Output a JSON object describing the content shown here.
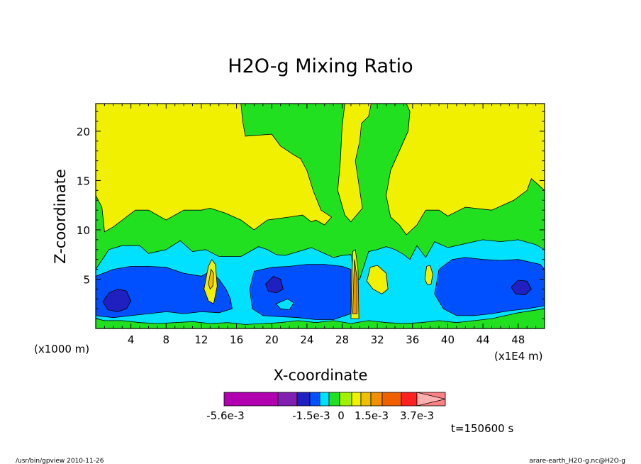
{
  "chart_data": {
    "type": "heatmap",
    "title": "H2O-g Mixing Ratio",
    "xlabel": "X-coordinate",
    "ylabel": "Z-coordinate",
    "xunit_left": "(x1000 m)",
    "xunit_right": "(x1E4 m)",
    "xlim": [
      0,
      51
    ],
    "ylim": [
      0,
      22.8
    ],
    "x_ticks": [
      "4",
      "8",
      "12",
      "16",
      "20",
      "24",
      "28",
      "32",
      "36",
      "40",
      "44",
      "48"
    ],
    "x_tick_values": [
      4,
      8,
      12,
      16,
      20,
      24,
      28,
      32,
      36,
      40,
      44,
      48
    ],
    "y_ticks": [
      "5",
      "10",
      "15",
      "20"
    ],
    "y_tick_values": [
      5,
      10,
      15,
      20
    ],
    "time_label": "t=150600 s",
    "colorbar": {
      "labels": [
        "-5.6e-3",
        "-1.5e-3",
        "0",
        "1.5e-3",
        "3.7e-3"
      ],
      "colors": [
        "#b000b0",
        "#8020b0",
        "#2020c0",
        "#0050ff",
        "#00e0ff",
        "#20e020",
        "#a0f000",
        "#f0f000",
        "#f0c000",
        "#f09000",
        "#f06000",
        "#ff2020",
        "#ff8080",
        "#ffb0b0"
      ]
    },
    "regions": [
      {
        "level": "green",
        "color": "#20e020",
        "points": [
          [
            0,
            0
          ],
          [
            51,
            0
          ],
          [
            51,
            22.8
          ],
          [
            0,
            22.8
          ]
        ]
      },
      {
        "level": "yellow-upper-left",
        "color": "#f0f000",
        "points": [
          [
            0,
            22.8
          ],
          [
            16.5,
            22.8
          ],
          [
            16.7,
            21
          ],
          [
            17,
            19.5
          ],
          [
            20,
            19.7
          ],
          [
            21,
            18.5
          ],
          [
            22.5,
            17.6
          ],
          [
            23.3,
            17.2
          ],
          [
            24,
            16
          ],
          [
            24.7,
            14
          ],
          [
            25.6,
            12
          ],
          [
            26.8,
            11.3
          ],
          [
            26,
            10.5
          ],
          [
            25,
            11
          ],
          [
            24.5,
            10.8
          ],
          [
            23.5,
            11.5
          ],
          [
            22,
            11.3
          ],
          [
            19.5,
            11
          ],
          [
            18,
            10
          ],
          [
            16.5,
            11
          ],
          [
            14.7,
            11.7
          ],
          [
            13,
            12.2
          ],
          [
            12,
            12
          ],
          [
            10,
            12
          ],
          [
            8,
            11
          ],
          [
            6,
            12
          ],
          [
            4.5,
            12
          ],
          [
            2,
            10.3
          ],
          [
            1,
            9.8
          ],
          [
            0.7,
            12.3
          ],
          [
            0,
            13.5
          ]
        ]
      },
      {
        "level": "yellow-upper-mid",
        "color": "#f0f000",
        "points": [
          [
            28.3,
            22.8
          ],
          [
            31.3,
            22.8
          ],
          [
            31,
            21.5
          ],
          [
            30.2,
            20.8
          ],
          [
            30,
            19
          ],
          [
            29.5,
            17
          ],
          [
            30,
            14
          ],
          [
            30.3,
            12.2
          ],
          [
            29,
            10.8
          ],
          [
            28.3,
            11.5
          ],
          [
            27.5,
            14
          ],
          [
            27.8,
            17
          ],
          [
            28,
            20.5
          ]
        ]
      },
      {
        "level": "yellow-upper-right",
        "color": "#f0f000",
        "points": [
          [
            35.3,
            22.8
          ],
          [
            51,
            22.8
          ],
          [
            51,
            14
          ],
          [
            49.5,
            15.2
          ],
          [
            49,
            14
          ],
          [
            47.5,
            13
          ],
          [
            45,
            12
          ],
          [
            42,
            12.3
          ],
          [
            40,
            11.4
          ],
          [
            39,
            12
          ],
          [
            37.5,
            12
          ],
          [
            36.5,
            10.5
          ],
          [
            35.3,
            9.5
          ],
          [
            34.5,
            10.5
          ],
          [
            33.5,
            11.3
          ],
          [
            33,
            13.5
          ],
          [
            33.5,
            16
          ],
          [
            34.5,
            18
          ],
          [
            35.5,
            20
          ],
          [
            35.7,
            22
          ]
        ]
      },
      {
        "level": "cyan",
        "color": "#00e0ff",
        "points": [
          [
            0,
            6
          ],
          [
            1.5,
            8
          ],
          [
            3,
            8.4
          ],
          [
            5,
            8.4
          ],
          [
            6,
            7.6
          ],
          [
            8,
            8
          ],
          [
            9.6,
            8.9
          ],
          [
            11,
            7.8
          ],
          [
            12.5,
            8
          ],
          [
            14,
            7.3
          ],
          [
            15.5,
            7.3
          ],
          [
            16.5,
            7.3
          ],
          [
            17.5,
            7.8
          ],
          [
            18.5,
            8.3
          ],
          [
            19.5,
            8
          ],
          [
            20.5,
            7.5
          ],
          [
            21.5,
            7.4
          ],
          [
            23,
            7.8
          ],
          [
            24.5,
            8.2
          ],
          [
            26,
            7.6
          ],
          [
            27,
            7.2
          ],
          [
            28,
            7.4
          ],
          [
            29,
            7.5
          ],
          [
            29.5,
            5
          ],
          [
            30,
            5
          ],
          [
            31,
            7.8
          ],
          [
            32,
            8
          ],
          [
            33,
            8.3
          ],
          [
            34,
            8
          ],
          [
            35,
            7.5
          ],
          [
            35.7,
            7
          ],
          [
            36.5,
            8.4
          ],
          [
            37.5,
            7.2
          ],
          [
            38.5,
            8.8
          ],
          [
            40,
            8.2
          ],
          [
            42,
            8.6
          ],
          [
            44,
            9
          ],
          [
            46,
            8.8
          ],
          [
            48,
            9
          ],
          [
            50,
            8.5
          ],
          [
            51,
            8
          ],
          [
            51,
            2
          ],
          [
            48,
            1.6
          ],
          [
            45,
            1
          ],
          [
            43,
            0.8
          ],
          [
            41,
            0.6
          ],
          [
            39,
            0.8
          ],
          [
            37,
            0.6
          ],
          [
            35,
            0.5
          ],
          [
            33,
            0.6
          ],
          [
            31,
            0.8
          ],
          [
            29,
            0.5
          ],
          [
            27,
            0.8
          ],
          [
            25,
            0.6
          ],
          [
            23,
            0.8
          ],
          [
            21,
            0.6
          ],
          [
            19,
            0.5
          ],
          [
            17,
            0.4
          ],
          [
            15,
            0.6
          ],
          [
            13,
            0.5
          ],
          [
            11,
            0.7
          ],
          [
            9,
            0.6
          ],
          [
            7,
            0.5
          ],
          [
            5,
            0.6
          ],
          [
            3,
            0.8
          ],
          [
            1,
            0.8
          ],
          [
            0,
            1
          ]
        ]
      },
      {
        "level": "blue-left",
        "color": "#0050ff",
        "points": [
          [
            0,
            5.3
          ],
          [
            2,
            6
          ],
          [
            4,
            6.3
          ],
          [
            6,
            6.3
          ],
          [
            8,
            6.2
          ],
          [
            10,
            5.6
          ],
          [
            12,
            5.3
          ],
          [
            13,
            5.8
          ],
          [
            14,
            5
          ],
          [
            14.8,
            4
          ],
          [
            15.3,
            3
          ],
          [
            15.5,
            2
          ],
          [
            14,
            1.6
          ],
          [
            12,
            1.7
          ],
          [
            10,
            1.5
          ],
          [
            8,
            1.7
          ],
          [
            6,
            1.5
          ],
          [
            4,
            1.3
          ],
          [
            2,
            1.1
          ],
          [
            0,
            1.3
          ]
        ]
      },
      {
        "level": "blue-mid",
        "color": "#0050ff",
        "points": [
          [
            17.5,
            4
          ],
          [
            18,
            5.8
          ],
          [
            20,
            6.2
          ],
          [
            22,
            6.3
          ],
          [
            24,
            6.5
          ],
          [
            26,
            6.5
          ],
          [
            28,
            6.3
          ],
          [
            29,
            6
          ],
          [
            29,
            1.5
          ],
          [
            27,
            0.9
          ],
          [
            25,
            0.9
          ],
          [
            23,
            1.1
          ],
          [
            21,
            1.2
          ],
          [
            19,
            1.3
          ],
          [
            17.8,
            2
          ]
        ]
      },
      {
        "level": "blue-right",
        "color": "#0050ff",
        "points": [
          [
            38.5,
            3.5
          ],
          [
            39,
            6
          ],
          [
            40.5,
            7
          ],
          [
            42,
            7.2
          ],
          [
            44,
            7
          ],
          [
            46,
            6.9
          ],
          [
            48,
            7
          ],
          [
            50.5,
            6.5
          ],
          [
            51,
            6
          ],
          [
            51,
            2.3
          ],
          [
            49,
            2
          ],
          [
            47,
            1.8
          ],
          [
            45,
            1.5
          ],
          [
            43,
            1.3
          ],
          [
            41,
            1.3
          ],
          [
            39.5,
            2
          ]
        ]
      },
      {
        "level": "deep-blue-1",
        "color": "#2020c0",
        "points": [
          [
            0.8,
            2.7
          ],
          [
            1.5,
            3.6
          ],
          [
            2.5,
            4
          ],
          [
            3.5,
            3.8
          ],
          [
            4,
            2.8
          ],
          [
            3.5,
            2
          ],
          [
            2.5,
            1.7
          ],
          [
            1.4,
            1.9
          ]
        ]
      },
      {
        "level": "deep-blue-2",
        "color": "#2020c0",
        "points": [
          [
            19.3,
            4.5
          ],
          [
            20.2,
            5.3
          ],
          [
            21,
            5
          ],
          [
            21.3,
            4
          ],
          [
            20.5,
            3.6
          ],
          [
            19.6,
            3.8
          ]
        ]
      },
      {
        "level": "deep-blue-3",
        "color": "#2020c0",
        "points": [
          [
            47.2,
            4.2
          ],
          [
            48,
            4.9
          ],
          [
            49,
            4.8
          ],
          [
            49.5,
            4
          ],
          [
            48.8,
            3.4
          ],
          [
            47.7,
            3.5
          ]
        ]
      },
      {
        "level": "cyan-inner",
        "color": "#00e0ff",
        "points": [
          [
            20.5,
            2.5
          ],
          [
            21.8,
            3
          ],
          [
            22.5,
            2.6
          ],
          [
            22,
            1.9
          ],
          [
            21,
            2
          ]
        ]
      },
      {
        "level": "yellow-plume-1",
        "color": "#f0f000",
        "points": [
          [
            12.3,
            4
          ],
          [
            12.8,
            6.3
          ],
          [
            13.2,
            7
          ],
          [
            13.6,
            6.5
          ],
          [
            13.8,
            4.3
          ],
          [
            13.4,
            2.5
          ],
          [
            12.8,
            2.8
          ]
        ]
      },
      {
        "level": "orange-plume-1",
        "color": "#f0c000",
        "points": [
          [
            12.8,
            4.5
          ],
          [
            13.1,
            6
          ],
          [
            13.4,
            5.6
          ],
          [
            13.3,
            4.3
          ],
          [
            13,
            4
          ]
        ]
      },
      {
        "level": "yellow-plume-2",
        "color": "#f0f000",
        "points": [
          [
            29,
            1
          ],
          [
            29.2,
            7.8
          ],
          [
            29.5,
            8
          ],
          [
            29.8,
            6
          ],
          [
            29.9,
            1
          ]
        ]
      },
      {
        "level": "orange-plume-2",
        "color": "#f09000",
        "points": [
          [
            29.2,
            1.5
          ],
          [
            29.4,
            7
          ],
          [
            29.7,
            5
          ],
          [
            29.7,
            1.5
          ]
        ]
      },
      {
        "level": "yellow-blob-1",
        "color": "#f0f000",
        "points": [
          [
            30.8,
            4.8
          ],
          [
            31.2,
            6.2
          ],
          [
            32,
            6.4
          ],
          [
            33,
            5.6
          ],
          [
            33.2,
            4
          ],
          [
            32.5,
            3.5
          ],
          [
            31.5,
            4
          ]
        ]
      },
      {
        "level": "yellow-blob-2",
        "color": "#f0f000",
        "points": [
          [
            37.4,
            5
          ],
          [
            37.6,
            6.3
          ],
          [
            38,
            6.4
          ],
          [
            38.3,
            5.5
          ],
          [
            38.1,
            4.5
          ],
          [
            37.7,
            4.4
          ]
        ]
      }
    ]
  },
  "footer": {
    "left": "/usr/bin/gpview   2010-11-26",
    "right": "arare-earth_H2O-g.nc@H2O-g"
  }
}
